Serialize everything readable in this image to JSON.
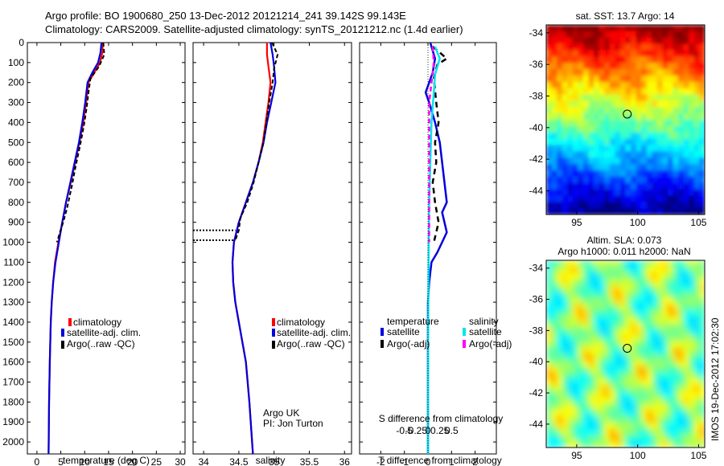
{
  "header": {
    "line1": "Argo profile: BO 1900680_250 13-Dec-2012 20121214_241 39.142S 99.143E",
    "line2": "Climatology: CARS2009. Satellite-adjusted climatology: synTS_20121212.nc (1.4d earlier)"
  },
  "side_stamp": "IMOS 19-Dec-2012 17:02:30",
  "credits": {
    "line1": "Argo UK",
    "line2": "PI: Jon Turton"
  },
  "colors": {
    "climatology": "#ff0000",
    "satellite": "#0000dd",
    "argo": "#000000",
    "sal_satellite": "#00e5ee",
    "sal_argo": "#ff00ff"
  },
  "chart_data": [
    {
      "type": "line",
      "name": "temperature",
      "xlabel": "temperature (deg C)",
      "ylabel": "",
      "xlim": [
        -2,
        31
      ],
      "ylim": [
        0,
        2060
      ],
      "y_reversed": true,
      "xticks": [
        0,
        5,
        10,
        15,
        20,
        25,
        30
      ],
      "yticks": [
        0,
        100,
        200,
        300,
        400,
        500,
        600,
        700,
        800,
        900,
        1000,
        1100,
        1200,
        1300,
        1400,
        1500,
        1600,
        1700,
        1800,
        1900,
        2000
      ],
      "legend": [
        "climatology",
        "satellite-adj. clim.",
        "Argo(..raw -QC)"
      ],
      "series": [
        {
          "name": "climatology",
          "points": [
            [
              13.8,
              0
            ],
            [
              13.7,
              50
            ],
            [
              13.2,
              100
            ],
            [
              12.0,
              150
            ],
            [
              10.8,
              200
            ],
            [
              10.3,
              300
            ],
            [
              9.7,
              400
            ],
            [
              8.9,
              500
            ],
            [
              8.0,
              600
            ],
            [
              7.1,
              700
            ],
            [
              6.1,
              800
            ],
            [
              5.3,
              900
            ],
            [
              4.5,
              1000
            ],
            [
              3.8,
              1100
            ],
            [
              3.4,
              1200
            ],
            [
              3.1,
              1300
            ],
            [
              2.9,
              1400
            ],
            [
              2.7,
              1600
            ],
            [
              2.55,
              1800
            ],
            [
              2.45,
              2060
            ]
          ]
        },
        {
          "name": "satellite-adj. clim.",
          "points": [
            [
              13.5,
              0
            ],
            [
              13.3,
              50
            ],
            [
              12.8,
              100
            ],
            [
              11.6,
              150
            ],
            [
              10.6,
              200
            ],
            [
              10.1,
              300
            ],
            [
              9.5,
              400
            ],
            [
              8.8,
              500
            ],
            [
              7.9,
              600
            ],
            [
              7.0,
              700
            ],
            [
              6.1,
              800
            ],
            [
              5.3,
              900
            ],
            [
              4.6,
              1000
            ],
            [
              3.9,
              1100
            ],
            [
              3.4,
              1200
            ],
            [
              3.1,
              1300
            ],
            [
              2.9,
              1400
            ],
            [
              2.7,
              1600
            ],
            [
              2.55,
              1800
            ],
            [
              2.45,
              2060
            ]
          ]
        },
        {
          "name": "Argo(..raw -QC)",
          "points": [
            [
              13.9,
              0
            ],
            [
              14.1,
              60
            ],
            [
              13.0,
              120
            ],
            [
              11.2,
              180
            ],
            [
              10.8,
              250
            ],
            [
              10.4,
              330
            ],
            [
              9.8,
              420
            ],
            [
              9.0,
              520
            ],
            [
              8.1,
              620
            ],
            [
              7.3,
              720
            ],
            [
              6.3,
              830
            ],
            [
              5.5,
              900
            ],
            [
              4.7,
              960
            ],
            [
              4.2,
              1000
            ]
          ]
        }
      ]
    },
    {
      "type": "line",
      "name": "salinity",
      "xlabel": "salinity",
      "ylabel": "",
      "xlim": [
        33.85,
        36.1
      ],
      "ylim": [
        0,
        2060
      ],
      "y_reversed": true,
      "xticks": [
        34,
        34.5,
        35,
        35.5,
        36
      ],
      "legend": [
        "climatology",
        "satellite-adj. clim.",
        "Argo(..raw -QC)"
      ],
      "series": [
        {
          "name": "climatology",
          "points": [
            [
              34.9,
              0
            ],
            [
              34.9,
              60
            ],
            [
              34.92,
              120
            ],
            [
              34.95,
              200
            ],
            [
              34.92,
              300
            ],
            [
              34.88,
              400
            ],
            [
              34.84,
              500
            ],
            [
              34.78,
              600
            ],
            [
              34.7,
              700
            ],
            [
              34.6,
              800
            ],
            [
              34.5,
              900
            ],
            [
              34.43,
              1000
            ],
            [
              34.41,
              1100
            ],
            [
              34.42,
              1200
            ],
            [
              34.45,
              1300
            ],
            [
              34.5,
              1400
            ],
            [
              34.55,
              1500
            ],
            [
              34.6,
              1600
            ],
            [
              34.65,
              1800
            ],
            [
              34.7,
              2060
            ]
          ]
        },
        {
          "name": "satellite-adj. clim.",
          "points": [
            [
              34.95,
              0
            ],
            [
              34.98,
              60
            ],
            [
              35.0,
              120
            ],
            [
              35.02,
              200
            ],
            [
              34.96,
              300
            ],
            [
              34.9,
              400
            ],
            [
              34.85,
              500
            ],
            [
              34.78,
              600
            ],
            [
              34.7,
              700
            ],
            [
              34.6,
              800
            ],
            [
              34.5,
              900
            ],
            [
              34.43,
              1000
            ],
            [
              34.41,
              1100
            ],
            [
              34.42,
              1200
            ],
            [
              34.45,
              1300
            ],
            [
              34.5,
              1400
            ],
            [
              34.55,
              1500
            ],
            [
              34.6,
              1600
            ],
            [
              34.65,
              1800
            ],
            [
              34.7,
              2060
            ]
          ]
        },
        {
          "name": "Argo(..raw -QC)",
          "points": [
            [
              34.97,
              0
            ],
            [
              35.05,
              60
            ],
            [
              35.0,
              130
            ],
            [
              34.98,
              200
            ],
            [
              34.93,
              300
            ],
            [
              34.89,
              400
            ],
            [
              34.85,
              500
            ],
            [
              34.78,
              600
            ],
            [
              34.71,
              700
            ],
            [
              34.62,
              800
            ],
            [
              34.52,
              880
            ],
            [
              34.5,
              940
            ],
            [
              34.45,
              990
            ]
          ]
        },
        {
          "name": "Argo QC flags",
          "points": [
            [
              33.85,
              940
            ],
            [
              34.45,
              940
            ],
            [
              33.85,
              990
            ],
            [
              34.45,
              990
            ]
          ]
        }
      ]
    },
    {
      "type": "line",
      "name": "difference",
      "xlabel": "T difference from climatology",
      "top_label": "S difference from climatology",
      "xlim": [
        -2.9,
        2.9
      ],
      "ylim": [
        0,
        2060
      ],
      "y_reversed": true,
      "xticks": [
        -2,
        -1,
        0,
        1,
        2
      ],
      "top_ticks": [
        "-0.5",
        "-0.25",
        "0",
        "0.25",
        "0.5"
      ],
      "legend_headers": [
        "temperature",
        "salinity"
      ],
      "legend": [
        "satellite",
        "Argo(-adj)",
        "satellite",
        "Argo(-adj)"
      ],
      "series": [
        {
          "name": "temperature satellite",
          "points": [
            [
              0.1,
              0
            ],
            [
              0.3,
              80
            ],
            [
              0.2,
              150
            ],
            [
              -0.1,
              250
            ],
            [
              0.05,
              300
            ],
            [
              0.3,
              400
            ],
            [
              0.5,
              500
            ],
            [
              0.6,
              600
            ],
            [
              0.7,
              700
            ],
            [
              0.8,
              800
            ],
            [
              0.6,
              850
            ],
            [
              0.7,
              900
            ],
            [
              0.8,
              950
            ],
            [
              0.6,
              1000
            ],
            [
              0.4,
              1050
            ],
            [
              0.15,
              1100
            ],
            [
              0.05,
              1200
            ],
            [
              0,
              1300
            ],
            [
              0,
              2060
            ]
          ]
        },
        {
          "name": "temperature Argo(-adj)",
          "points": [
            [
              0.2,
              20
            ],
            [
              0.5,
              50
            ],
            [
              0.8,
              80
            ],
            [
              0.4,
              110
            ],
            [
              0.25,
              180
            ],
            [
              0.35,
              300
            ],
            [
              0.45,
              400
            ],
            [
              0.3,
              500
            ],
            [
              0.35,
              600
            ],
            [
              0.2,
              700
            ],
            [
              0.3,
              800
            ],
            [
              0.45,
              900
            ],
            [
              0.35,
              950
            ],
            [
              0.25,
              1000
            ]
          ]
        },
        {
          "name": "salinity satellite",
          "points": [
            [
              0.3,
              20
            ],
            [
              0.5,
              80
            ],
            [
              0.3,
              160
            ],
            [
              0.25,
              250
            ],
            [
              0.15,
              400
            ],
            [
              0.1,
              600
            ],
            [
              0.05,
              800
            ],
            [
              0.03,
              1000
            ],
            [
              0.02,
              1200
            ],
            [
              0.01,
              1400
            ],
            [
              0,
              2060
            ]
          ]
        },
        {
          "name": "salinity Argo(-adj)",
          "points": [
            [
              0.2,
              20
            ],
            [
              0.25,
              100
            ],
            [
              0.15,
              200
            ],
            [
              0.05,
              300
            ],
            [
              0.05,
              500
            ],
            [
              0.05,
              700
            ],
            [
              0.05,
              900
            ],
            [
              0.05,
              1000
            ]
          ]
        },
        {
          "name": "zero line",
          "points": [
            [
              0,
              0
            ],
            [
              0,
              2060
            ]
          ]
        }
      ]
    },
    {
      "type": "heatmap",
      "title": "sat. SST: 13.7 Argo: 14",
      "xlim": [
        92.5,
        105.5
      ],
      "ylim": [
        -45.5,
        -33.5
      ],
      "xticks": [
        95,
        100,
        105
      ],
      "yticks": [
        -34,
        -36,
        -38,
        -40,
        -42,
        -44
      ],
      "marker": {
        "lon": 99.143,
        "lat": -39.142
      }
    },
    {
      "type": "heatmap",
      "title": "Altim. SLA: 0.073",
      "subtitle": "Argo h1000: 0.011 h2000: NaN",
      "xlim": [
        92.5,
        105.5
      ],
      "ylim": [
        -45.5,
        -33.5
      ],
      "xticks": [
        95,
        100,
        105
      ],
      "yticks": [
        -34,
        -36,
        -38,
        -40,
        -42,
        -44
      ],
      "marker": {
        "lon": 99.143,
        "lat": -39.142
      }
    }
  ]
}
